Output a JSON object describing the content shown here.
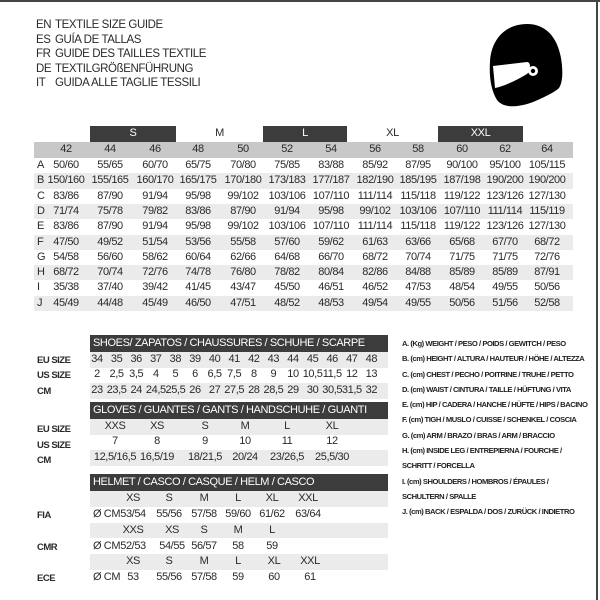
{
  "titles": [
    {
      "code": "EN",
      "text": "TEXTILE SIZE GUIDE"
    },
    {
      "code": "ES",
      "text": "GUÍA DE TALLAS"
    },
    {
      "code": "FR",
      "text": "GUIDE DES TAILLES TEXTILE"
    },
    {
      "code": "DE",
      "text": "TEXTILGRÖßENFÜHRUNG"
    },
    {
      "code": "IT",
      "text": "GUIDA ALLE TAGLIE TESSILI"
    }
  ],
  "helmet_icon": "helmet-icon",
  "textile": {
    "size_groups": [
      {
        "label": "S",
        "dark": true
      },
      {
        "label": "M",
        "dark": false
      },
      {
        "label": "L",
        "dark": true
      },
      {
        "label": "XL",
        "dark": false
      },
      {
        "label": "XXL",
        "dark": true
      }
    ],
    "sizes": [
      "42",
      "44",
      "46",
      "48",
      "50",
      "52",
      "54",
      "56",
      "58",
      "60",
      "62",
      "64"
    ],
    "rows": [
      {
        "key": "A",
        "values": [
          "50/60",
          "55/65",
          "60/70",
          "65/75",
          "70/80",
          "75/85",
          "83/88",
          "85/92",
          "87/95",
          "90/100",
          "95/100",
          "105/115"
        ]
      },
      {
        "key": "B",
        "values": [
          "150/160",
          "155/165",
          "160/170",
          "165/175",
          "170/180",
          "173/183",
          "177/187",
          "182/190",
          "185/195",
          "187/198",
          "190/200",
          "190/200"
        ]
      },
      {
        "key": "C",
        "values": [
          "83/86",
          "87/90",
          "91/94",
          "95/98",
          "99/102",
          "103/106",
          "107/110",
          "111/114",
          "115/118",
          "119/122",
          "123/126",
          "127/130"
        ]
      },
      {
        "key": "D",
        "values": [
          "71/74",
          "75/78",
          "79/82",
          "83/86",
          "87/90",
          "91/94",
          "95/98",
          "99/102",
          "103/106",
          "107/110",
          "111/114",
          "115/119"
        ]
      },
      {
        "key": "E",
        "values": [
          "83/86",
          "87/90",
          "91/94",
          "95/98",
          "99/102",
          "103/106",
          "107/110",
          "111/114",
          "115/118",
          "119/122",
          "123/126",
          "127/130"
        ]
      },
      {
        "key": "F",
        "values": [
          "47/50",
          "49/52",
          "51/54",
          "53/56",
          "55/58",
          "57/60",
          "59/62",
          "61/63",
          "63/66",
          "65/68",
          "67/70",
          "68/72"
        ]
      },
      {
        "key": "G",
        "values": [
          "54/58",
          "56/60",
          "58/62",
          "60/64",
          "62/66",
          "64/68",
          "66/70",
          "68/72",
          "70/74",
          "71/75",
          "71/75",
          "72/76"
        ]
      },
      {
        "key": "H",
        "values": [
          "68/72",
          "70/74",
          "72/76",
          "74/78",
          "76/80",
          "78/82",
          "80/84",
          "82/86",
          "84/88",
          "85/89",
          "85/89",
          "87/91"
        ]
      },
      {
        "key": "I",
        "values": [
          "35/38",
          "37/40",
          "39/42",
          "41/45",
          "43/47",
          "45/50",
          "46/51",
          "46/52",
          "47/53",
          "48/54",
          "49/55",
          "50/56"
        ]
      },
      {
        "key": "J",
        "values": [
          "45/49",
          "44/48",
          "45/49",
          "46/50",
          "47/51",
          "48/52",
          "48/53",
          "49/54",
          "49/55",
          "50/56",
          "51/56",
          "52/58"
        ]
      }
    ]
  },
  "shoes": {
    "title": "SHOES/ ZAPATOS / CHAUSSURES / SCHUHE / SCARPE",
    "rows": [
      {
        "label": "EU SIZE",
        "values": [
          "34",
          "35",
          "36",
          "37",
          "38",
          "39",
          "40",
          "41",
          "42",
          "43",
          "44",
          "45",
          "46",
          "47",
          "48"
        ]
      },
      {
        "label": "US SIZE",
        "values": [
          "2",
          "2,5",
          "3,5",
          "4",
          "5",
          "6",
          "6,5",
          "7,5",
          "8",
          "9",
          "10",
          "10,5",
          "11,5",
          "12",
          "13"
        ]
      },
      {
        "label": "CM",
        "values": [
          "23",
          "23,5",
          "24",
          "24,5",
          "25,5",
          "26",
          "27",
          "27,5",
          "28",
          "28,5",
          "29",
          "30",
          "30,5",
          "31,5",
          "32"
        ]
      }
    ]
  },
  "gloves": {
    "title": "GLOVES / GUANTES / GANTS / HANDSCHUHE / GUANTI",
    "rows": [
      {
        "label": "EU SIZE",
        "values": [
          "XXS",
          "XS",
          "S",
          "M",
          "L",
          "XL"
        ]
      },
      {
        "label": "US SIZE",
        "values": [
          "7",
          "8",
          "9",
          "10",
          "11",
          "12"
        ]
      },
      {
        "label": "CM",
        "values": [
          "12,5/16,5",
          "16,5/19",
          "18/21,5",
          "20/24",
          "23/26,5",
          "25,5/30"
        ]
      }
    ]
  },
  "helmet": {
    "title": "HELMET / CASCO / CASQUE / HELM / CASCO",
    "unit": "Ø CM",
    "standards": [
      {
        "label": "FIA",
        "sizes": [
          "XS",
          "S",
          "M",
          "L",
          "XL",
          "XXL"
        ],
        "values": [
          "53/54",
          "55/56",
          "57/58",
          "59/60",
          "61/62",
          "63/64"
        ]
      },
      {
        "label": "CMR",
        "sizes": [
          "XXS",
          "XS",
          "S",
          "M",
          "L"
        ],
        "values": [
          "52/53",
          "54/55",
          "56/57",
          "58",
          "59"
        ]
      },
      {
        "label": "ECE",
        "sizes": [
          "XS",
          "S",
          "M",
          "L",
          "XL",
          "XXL"
        ],
        "values": [
          "53",
          "55/56",
          "57/58",
          "59",
          "60",
          "61"
        ]
      }
    ]
  },
  "legend": [
    "A. (Kg) WEIGHT / PESO / POIDS / GEWITCH / PESO",
    "B. (cm) HEIGHT / ALTURA / HAUTEUR / HÖHE / ALTEZZA",
    "C. (cm) CHEST / PECHO / POITRINE / TRUHE / PETTO",
    "D. (cm) WAIST / CINTURA / TAILLE / HÜFTUNG / VITA",
    "E. (cm) HIP / CADERA / HANCHE / HÜFTE / HIPS /  BACINO",
    "F.  (cm) TIGH / MUSLO / CUISSE / SCHENKEL / COSCIA",
    "G. (cm) ARM  / BRAZO / BRAS / ARM / BRACCIO",
    "H. (cm) INSIDE LEG / ENTREPIERNA / FOURCHE /",
    "SCHRITT / FORCELLA",
    "I.  (cm) SHOULDERS / HOMBROS / ÉPAULES /",
    "SCHULTERN / SPALLE",
    "J. (cm) BACK / ESPALDA / DOS / ZURÜCK / INDIETRO"
  ]
}
